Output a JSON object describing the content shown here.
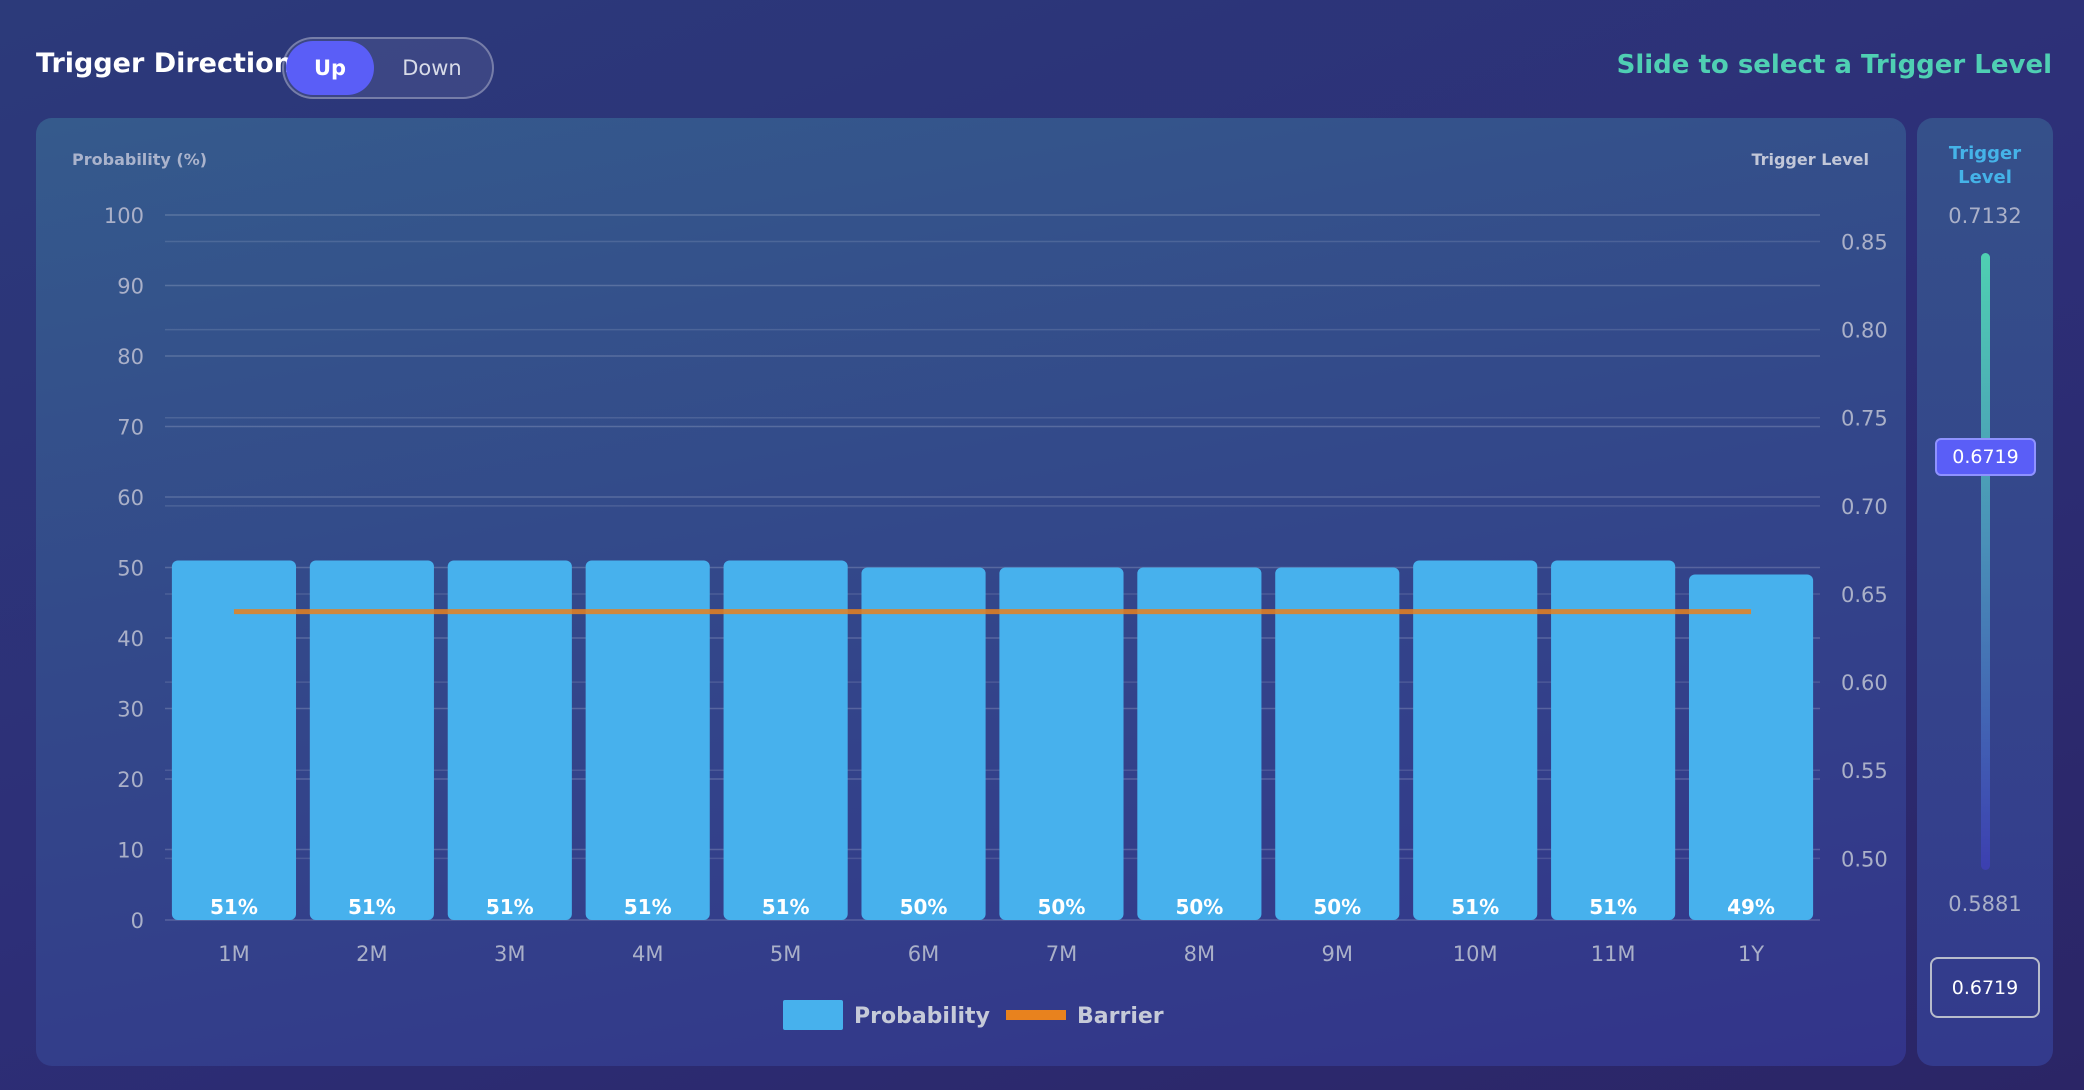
{
  "header": {
    "title": "Trigger Direction",
    "toggle": {
      "options": [
        "Up",
        "Down"
      ],
      "selected": "Up"
    },
    "hint": "Slide to select a Trigger Level"
  },
  "slider": {
    "title_line1": "Trigger",
    "title_line2": "Level",
    "max": "0.7132",
    "min": "0.5881",
    "value": "0.6719",
    "value_num": 0.6719,
    "max_num": 0.7132,
    "min_num": 0.5881,
    "input_value": "0.6719"
  },
  "colors": {
    "bar": "#47b1ed",
    "barrier": "#e8821e",
    "accent": "#5a5ef7",
    "hint": "#4fcfb3"
  },
  "chart_data": {
    "type": "bar",
    "categories": [
      "1M",
      "2M",
      "3M",
      "4M",
      "5M",
      "6M",
      "7M",
      "8M",
      "9M",
      "10M",
      "11M",
      "1Y"
    ],
    "series": [
      {
        "name": "Probability",
        "axis": "left",
        "values": [
          51,
          51,
          51,
          51,
          51,
          50,
          50,
          50,
          50,
          51,
          51,
          49
        ],
        "labels": [
          "51%",
          "51%",
          "51%",
          "51%",
          "51%",
          "50%",
          "50%",
          "50%",
          "50%",
          "51%",
          "51%",
          "49%"
        ]
      },
      {
        "name": "Barrier",
        "type": "line",
        "axis": "right",
        "values": [
          0.64,
          0.64,
          0.64,
          0.64,
          0.64,
          0.64,
          0.64,
          0.64,
          0.64,
          0.64,
          0.64,
          0.64
        ]
      }
    ],
    "ylabel": "Probability (%)",
    "ylim": [
      0,
      100
    ],
    "yticks": [
      "0",
      "10",
      "20",
      "30",
      "40",
      "50",
      "60",
      "70",
      "80",
      "90",
      "100"
    ],
    "y2label": "Trigger Level",
    "y2lim": [
      0.465,
      0.865
    ],
    "y2ticks": [
      "0.50",
      "0.55",
      "0.60",
      "0.65",
      "0.70",
      "0.75",
      "0.80",
      "0.85"
    ],
    "legend": [
      "Probability",
      "Barrier"
    ],
    "legend_position": "bottom",
    "grid": true
  }
}
